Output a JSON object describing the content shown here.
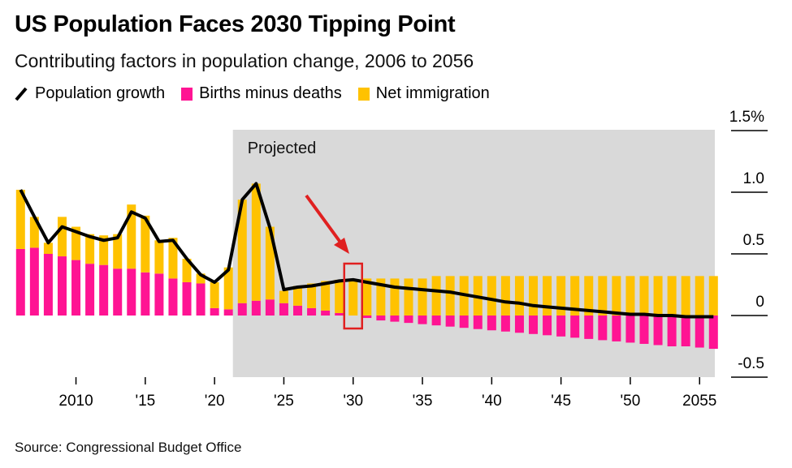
{
  "title": "US Population Faces 2030 Tipping Point",
  "subtitle": "Contributing factors in population change, 2006 to 2056",
  "source": "Source: Congressional Budget Office",
  "legend": {
    "growth": "Population growth",
    "births": "Births minus deaths",
    "immigration": "Net immigration"
  },
  "colors": {
    "births": "#ff1493",
    "immigration": "#ffc200",
    "growth": "#000000",
    "projected_bg": "#d9d9d9",
    "highlight": "#e02020"
  },
  "chart_data": {
    "type": "bar",
    "subtype": "stacked bar with line",
    "projected_label": "Projected",
    "projected_from_year": 2022,
    "highlight_year": 2030,
    "y_tick_labels": [
      "1.5%",
      "1.0",
      "0.5",
      "0",
      "-0.5"
    ],
    "y_ticks": [
      1.5,
      1.0,
      0.5,
      0,
      -0.5
    ],
    "ylim": [
      -0.5,
      1.5
    ],
    "x_tick_labels": [
      "2010",
      "'15",
      "'20",
      "'25",
      "'30",
      "'35",
      "'40",
      "'45",
      "'50",
      "2055"
    ],
    "x_ticks": [
      2010,
      2015,
      2020,
      2025,
      2030,
      2035,
      2040,
      2045,
      2050,
      2055
    ],
    "years": [
      2006,
      2007,
      2008,
      2009,
      2010,
      2011,
      2012,
      2013,
      2014,
      2015,
      2016,
      2017,
      2018,
      2019,
      2020,
      2021,
      2022,
      2023,
      2024,
      2025,
      2026,
      2027,
      2028,
      2029,
      2030,
      2031,
      2032,
      2033,
      2034,
      2035,
      2036,
      2037,
      2038,
      2039,
      2040,
      2041,
      2042,
      2043,
      2044,
      2045,
      2046,
      2047,
      2048,
      2049,
      2050,
      2051,
      2052,
      2053,
      2054,
      2055,
      2056
    ],
    "series": [
      {
        "name": "Births minus deaths",
        "values": [
          0.54,
          0.55,
          0.5,
          0.48,
          0.45,
          0.42,
          0.41,
          0.38,
          0.38,
          0.35,
          0.34,
          0.3,
          0.27,
          0.26,
          0.06,
          0.05,
          0.1,
          0.12,
          0.13,
          0.1,
          0.08,
          0.06,
          0.04,
          0.02,
          0.0,
          -0.02,
          -0.04,
          -0.05,
          -0.06,
          -0.07,
          -0.08,
          -0.09,
          -0.1,
          -0.11,
          -0.12,
          -0.13,
          -0.14,
          -0.15,
          -0.16,
          -0.17,
          -0.18,
          -0.19,
          -0.2,
          -0.21,
          -0.22,
          -0.23,
          -0.24,
          -0.25,
          -0.25,
          -0.26,
          -0.27
        ]
      },
      {
        "name": "Net immigration",
        "values": [
          0.48,
          0.25,
          0.09,
          0.32,
          0.27,
          0.24,
          0.24,
          0.28,
          0.52,
          0.46,
          0.27,
          0.33,
          0.19,
          0.08,
          0.21,
          0.34,
          0.84,
          0.95,
          0.59,
          0.1,
          0.16,
          0.2,
          0.24,
          0.27,
          0.29,
          0.3,
          0.3,
          0.3,
          0.3,
          0.3,
          0.32,
          0.32,
          0.32,
          0.32,
          0.32,
          0.32,
          0.32,
          0.32,
          0.32,
          0.32,
          0.32,
          0.32,
          0.32,
          0.32,
          0.32,
          0.32,
          0.32,
          0.32,
          0.32,
          0.32,
          0.32
        ]
      },
      {
        "name": "Population growth",
        "values": [
          1.02,
          0.8,
          0.59,
          0.72,
          0.68,
          0.64,
          0.61,
          0.63,
          0.84,
          0.79,
          0.6,
          0.61,
          0.46,
          0.33,
          0.27,
          0.37,
          0.94,
          1.07,
          0.71,
          0.21,
          0.23,
          0.24,
          0.26,
          0.28,
          0.29,
          0.27,
          0.25,
          0.23,
          0.22,
          0.21,
          0.2,
          0.19,
          0.17,
          0.15,
          0.13,
          0.11,
          0.1,
          0.08,
          0.07,
          0.06,
          0.05,
          0.04,
          0.03,
          0.02,
          0.01,
          0.01,
          0.0,
          0.0,
          -0.01,
          -0.01,
          -0.01
        ]
      }
    ]
  }
}
